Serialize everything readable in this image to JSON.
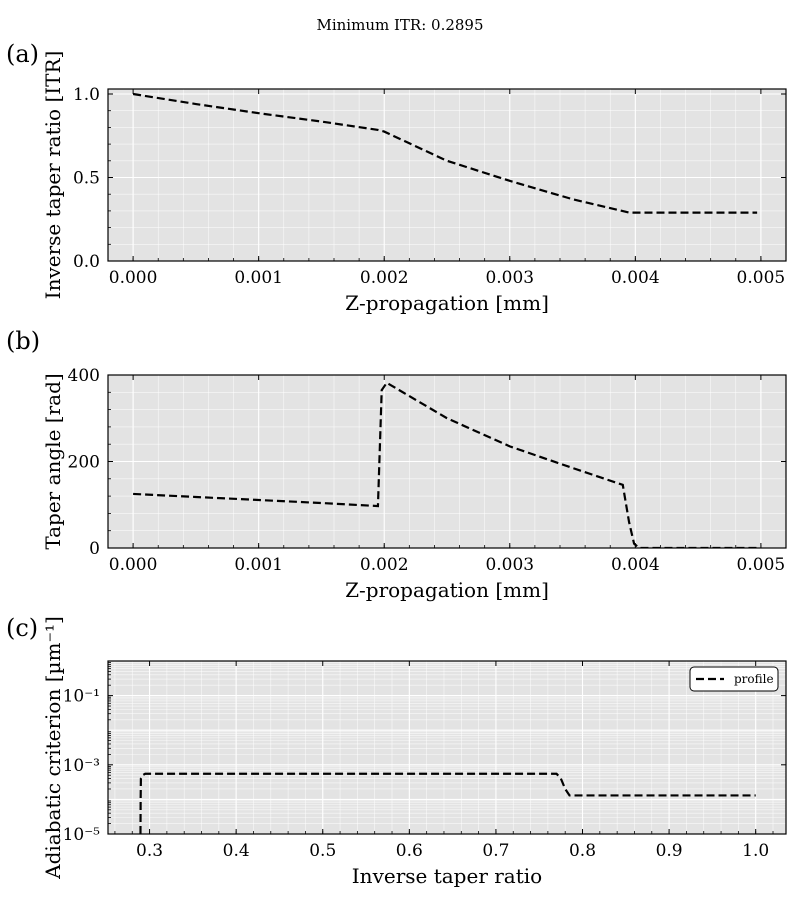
{
  "figure": {
    "suptitle": "Minimum ITR: 0.2895",
    "background": "#ffffff",
    "axes_bg": "#e3e3e3",
    "grid_color": "#ffffff",
    "line_color": "#000000"
  },
  "chart_data": [
    {
      "panel_label": "(a)",
      "type": "line",
      "xlabel": "Z-propagation [mm]",
      "ylabel": "Inverse taper ratio [ITR]",
      "xlim": [
        -0.0002,
        0.0052
      ],
      "ylim": [
        0.0,
        1.03
      ],
      "xscale": "linear",
      "yscale": "linear",
      "grid": true,
      "xticks": [
        {
          "v": 0.0,
          "label": "0.000"
        },
        {
          "v": 0.001,
          "label": "0.001"
        },
        {
          "v": 0.002,
          "label": "0.002"
        },
        {
          "v": 0.003,
          "label": "0.003"
        },
        {
          "v": 0.004,
          "label": "0.004"
        },
        {
          "v": 0.005,
          "label": "0.005"
        }
      ],
      "yticks": [
        {
          "v": 0.0,
          "label": "0.0"
        },
        {
          "v": 0.5,
          "label": "0.5"
        },
        {
          "v": 1.0,
          "label": "1.0"
        }
      ],
      "series": [
        {
          "style": "dashed",
          "x": [
            0.0,
            0.0005,
            0.001,
            0.0015,
            0.00195,
            0.002,
            0.0025,
            0.003,
            0.0035,
            0.00395,
            0.004,
            0.0045,
            0.00497
          ],
          "y": [
            1.0,
            0.94,
            0.885,
            0.835,
            0.785,
            0.775,
            0.6,
            0.48,
            0.37,
            0.29,
            0.2895,
            0.2895,
            0.2895
          ]
        }
      ]
    },
    {
      "panel_label": "(b)",
      "type": "line",
      "xlabel": "Z-propagation [mm]",
      "ylabel": "Taper angle [rad]",
      "xlim": [
        -0.0002,
        0.0052
      ],
      "ylim": [
        0,
        400
      ],
      "xscale": "linear",
      "yscale": "linear",
      "grid": true,
      "xticks": [
        {
          "v": 0.0,
          "label": "0.000"
        },
        {
          "v": 0.001,
          "label": "0.001"
        },
        {
          "v": 0.002,
          "label": "0.002"
        },
        {
          "v": 0.003,
          "label": "0.003"
        },
        {
          "v": 0.004,
          "label": "0.004"
        },
        {
          "v": 0.005,
          "label": "0.005"
        }
      ],
      "yticks": [
        {
          "v": 0,
          "label": "0"
        },
        {
          "v": 200,
          "label": "200"
        },
        {
          "v": 400,
          "label": "400"
        }
      ],
      "series": [
        {
          "style": "dashed",
          "x": [
            0.0,
            0.0005,
            0.001,
            0.0015,
            0.00195,
            0.00198,
            0.00202,
            0.0025,
            0.003,
            0.0035,
            0.0039,
            0.00395,
            0.00399,
            0.00403,
            0.0045,
            0.00497
          ],
          "y": [
            125,
            118,
            111,
            104,
            97,
            365,
            382,
            300,
            235,
            185,
            146,
            60,
            10,
            0,
            0,
            0
          ]
        }
      ]
    },
    {
      "panel_label": "(c)",
      "type": "line",
      "xlabel": "Inverse taper ratio",
      "ylabel": "Adiabatic criterion [µm⁻¹]",
      "xlim": [
        0.252,
        1.035
      ],
      "ylim": [
        1e-05,
        1.0
      ],
      "xscale": "linear",
      "yscale": "log",
      "grid": true,
      "legend": "upper right",
      "xticks": [
        {
          "v": 0.3,
          "label": "0.3"
        },
        {
          "v": 0.4,
          "label": "0.4"
        },
        {
          "v": 0.5,
          "label": "0.5"
        },
        {
          "v": 0.6,
          "label": "0.6"
        },
        {
          "v": 0.7,
          "label": "0.7"
        },
        {
          "v": 0.8,
          "label": "0.8"
        },
        {
          "v": 0.9,
          "label": "0.9"
        },
        {
          "v": 1.0,
          "label": "1.0"
        }
      ],
      "yticks": [
        {
          "v": 1e-05,
          "label": "10⁻⁵"
        },
        {
          "v": 0.001,
          "label": "10⁻³"
        },
        {
          "v": 0.1,
          "label": "10⁻¹"
        }
      ],
      "series": [
        {
          "name": "profile",
          "style": "dashed",
          "x": [
            0.2895,
            0.2897,
            0.29,
            0.292,
            0.295,
            0.5,
            0.7,
            0.77,
            0.775,
            0.78,
            0.785,
            0.9,
            1.0
          ],
          "y": [
            1e-05,
            0.0001,
            0.0004,
            0.0005,
            0.00055,
            0.00055,
            0.00055,
            0.00055,
            0.0004,
            0.0002,
            0.00013,
            0.00013,
            0.00013
          ]
        }
      ]
    }
  ]
}
